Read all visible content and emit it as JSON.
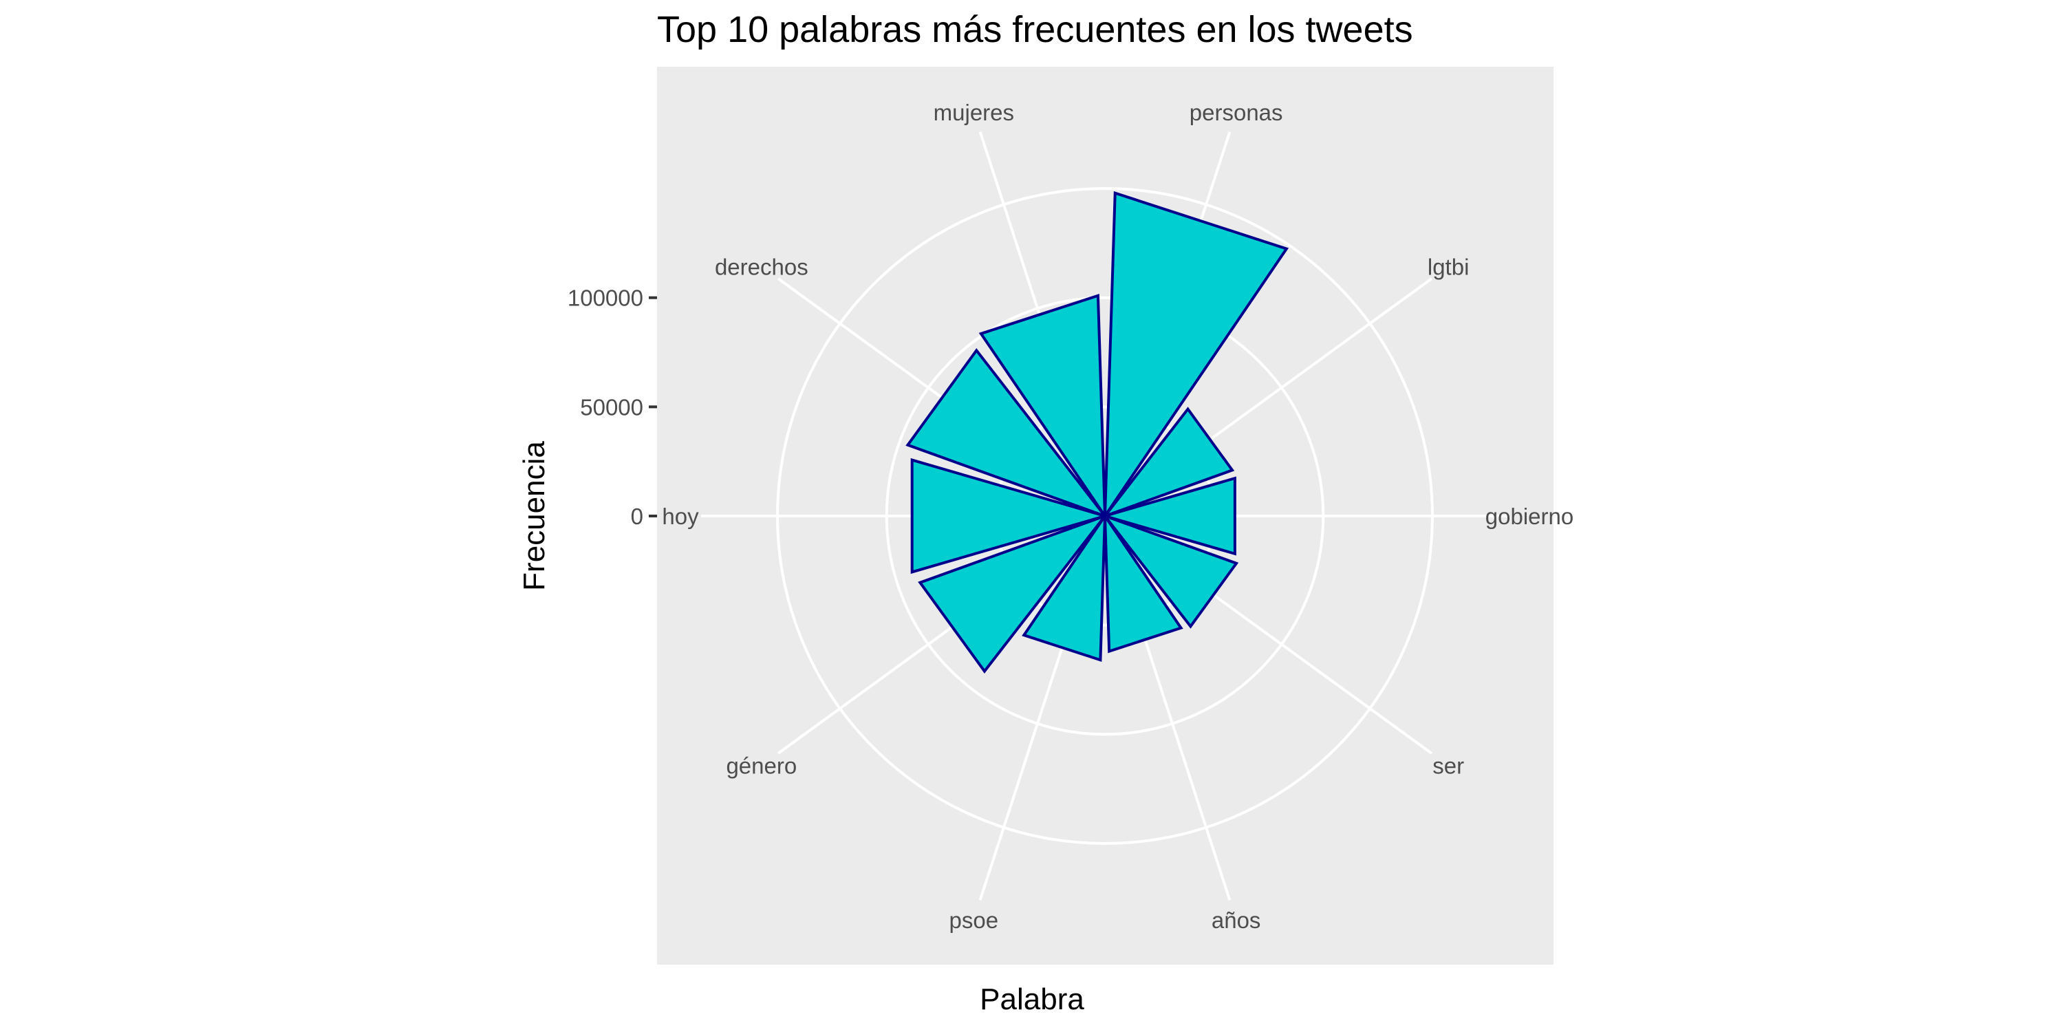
{
  "chart_data": {
    "type": "polar-bar",
    "title": "Top 10 palabras más frecuentes en los tweets",
    "xlabel": "Palabra",
    "ylabel": "Frecuencia",
    "categories": [
      "personas",
      "lgtbi",
      "gobierno",
      "ser",
      "años",
      "psoe",
      "género",
      "hoy",
      "derechos",
      "mujeres"
    ],
    "values": [
      148000,
      62000,
      62000,
      64000,
      62000,
      66000,
      90000,
      92000,
      96000,
      101000
    ],
    "radial_ticks": [
      0,
      50000,
      100000
    ],
    "radial_tick_labels": [
      "0",
      "50000",
      "100000"
    ],
    "rlim": [
      0,
      185000
    ],
    "grid": true,
    "colors": {
      "bar_fill": "#00CED1",
      "bar_stroke": "#00008B",
      "panel_background": "#EBEBEB",
      "grid": "#FFFFFF",
      "axis_text": "#4D4D4D"
    }
  }
}
